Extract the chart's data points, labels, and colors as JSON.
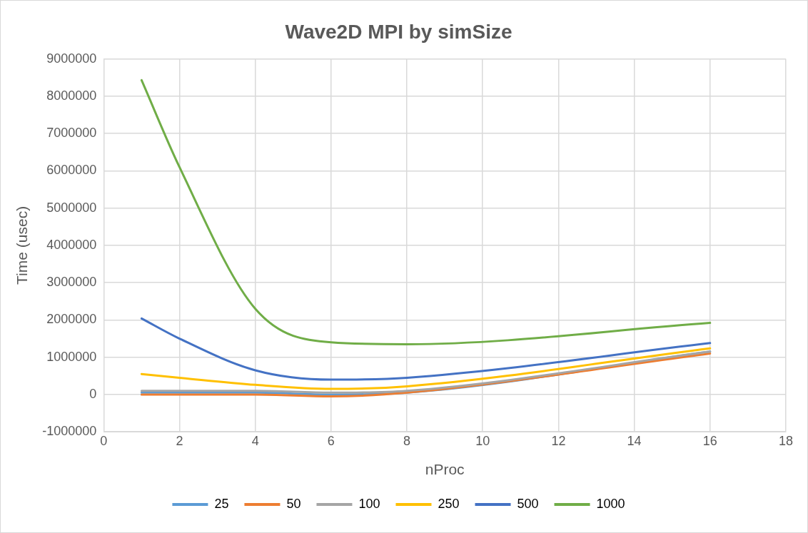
{
  "chart_data": {
    "type": "line",
    "title": "Wave2D MPI by simSize",
    "xlabel": "nProc",
    "ylabel": "Time (usec)",
    "x": [
      1,
      2,
      4,
      6,
      8,
      16
    ],
    "xlim": [
      0,
      18
    ],
    "xticks": [
      0,
      2,
      4,
      6,
      8,
      10,
      12,
      14,
      16,
      18
    ],
    "ylim": [
      -1000000,
      9000000
    ],
    "yticks": [
      -1000000,
      0,
      1000000,
      2000000,
      3000000,
      4000000,
      5000000,
      6000000,
      7000000,
      8000000,
      9000000
    ],
    "grid": true,
    "legend": "bottom",
    "marker": "none",
    "line_style": "solid",
    "series": [
      {
        "name": "25",
        "color": "#5b9bd5",
        "values": [
          50000,
          50000,
          50000,
          0,
          50000,
          1150000
        ]
      },
      {
        "name": "50",
        "color": "#ed7d31",
        "values": [
          0,
          0,
          0,
          -50000,
          50000,
          1100000
        ]
      },
      {
        "name": "100",
        "color": "#a5a5a5",
        "values": [
          100000,
          100000,
          100000,
          50000,
          100000,
          1150000
        ]
      },
      {
        "name": "250",
        "color": "#ffc000",
        "values": [
          550000,
          450000,
          260000,
          150000,
          220000,
          1240000
        ]
      },
      {
        "name": "500",
        "color": "#4472c4",
        "values": [
          2040000,
          1500000,
          650000,
          400000,
          450000,
          1380000
        ]
      },
      {
        "name": "1000",
        "color": "#70ad47",
        "values": [
          8430000,
          6100000,
          2300000,
          1400000,
          1350000,
          1920000
        ]
      }
    ]
  }
}
